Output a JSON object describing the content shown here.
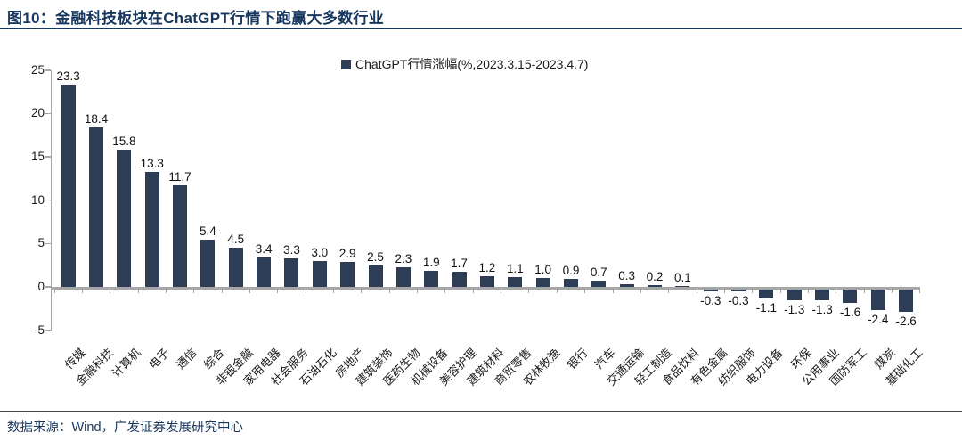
{
  "figure": {
    "number": "图10",
    "title": "图10：金融科技板块在ChatGPT行情下跑赢大多数行业",
    "source": "数据来源：Wind，广发证券发展研究中心"
  },
  "colors": {
    "bar": "#2e3d56",
    "title": "#17375e",
    "axis": "#a6a6a6",
    "text": "#1a1a1a",
    "footer_rule": "#454545"
  },
  "chart_data": {
    "type": "bar",
    "title": "金融科技板块在ChatGPT行情下跑赢大多数行业",
    "legend": [
      "ChatGPT行情涨幅(%,2023.3.15-2023.4.7)"
    ],
    "legend_position": "top-center",
    "categories": [
      "传媒",
      "金融科技",
      "计算机",
      "电子",
      "通信",
      "综合",
      "非银金融",
      "家用电器",
      "社会服务",
      "石油石化",
      "房地产",
      "建筑装饰",
      "医药生物",
      "机械设备",
      "美容护理",
      "建筑材料",
      "商贸零售",
      "农林牧渔",
      "银行",
      "汽车",
      "交通运输",
      "轻工制造",
      "食品饮料",
      "有色金属",
      "纺织服饰",
      "电力设备",
      "环保",
      "公用事业",
      "国防军工",
      "煤炭",
      "基础化工"
    ],
    "values": [
      23.3,
      18.4,
      15.8,
      13.3,
      11.7,
      5.4,
      4.5,
      3.4,
      3.3,
      3.0,
      2.9,
      2.5,
      2.3,
      1.9,
      1.7,
      1.2,
      1.1,
      1.0,
      0.9,
      0.7,
      0.3,
      0.2,
      0.1,
      -0.3,
      -0.3,
      -1.1,
      -1.3,
      -1.3,
      -1.6,
      -2.4,
      -2.6
    ],
    "data_labels": true,
    "xlabel": "",
    "ylabel": "",
    "ylim": [
      -5,
      25
    ],
    "yticks": [
      25,
      20,
      15,
      10,
      5,
      0,
      -5
    ],
    "grid": false
  }
}
